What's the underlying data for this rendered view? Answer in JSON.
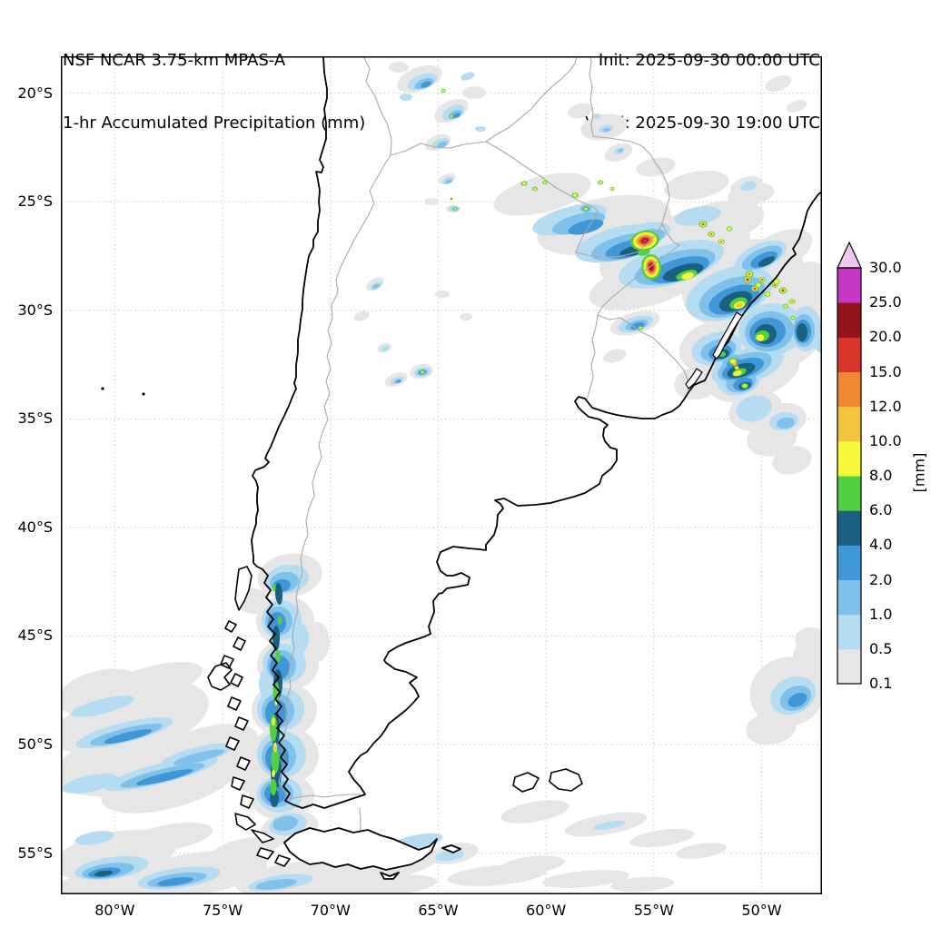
{
  "header": {
    "model_title": "NSF NCAR 3.75-km MPAS-A",
    "product_title": "1-hr Accumulated Precipitation (mm)",
    "init_label": "Init: 2025-09-30 00:00 UTC",
    "valid_label": "Valid: 2025-09-30 19:00 UTC"
  },
  "map": {
    "extent": {
      "west_lon_deg_w": 82.5,
      "east_lon_deg_w": 47.2,
      "north_lat_deg_s": 18.3,
      "south_lat_deg_s": 56.9
    },
    "lon_ticks": [
      {
        "value_deg_w": 80,
        "label": "80°W"
      },
      {
        "value_deg_w": 75,
        "label": "75°W"
      },
      {
        "value_deg_w": 70,
        "label": "70°W"
      },
      {
        "value_deg_w": 65,
        "label": "65°W"
      },
      {
        "value_deg_w": 60,
        "label": "60°W"
      },
      {
        "value_deg_w": 55,
        "label": "55°W"
      },
      {
        "value_deg_w": 50,
        "label": "50°W"
      }
    ],
    "lat_ticks": [
      {
        "value_deg_s": 20,
        "label": "20°S"
      },
      {
        "value_deg_s": 25,
        "label": "25°S"
      },
      {
        "value_deg_s": 30,
        "label": "30°S"
      },
      {
        "value_deg_s": 35,
        "label": "35°S"
      },
      {
        "value_deg_s": 40,
        "label": "40°S"
      },
      {
        "value_deg_s": 45,
        "label": "45°S"
      },
      {
        "value_deg_s": 50,
        "label": "50°S"
      },
      {
        "value_deg_s": 55,
        "label": "55°S"
      }
    ],
    "coastline_color": "#000000",
    "border_color": "#a9a9a9",
    "grid_color": "#cccccc"
  },
  "colorbar": {
    "unit_label": "[mm]",
    "tick_labels": [
      "0.1",
      "0.5",
      "1.0",
      "2.0",
      "4.0",
      "6.0",
      "8.0",
      "10.0",
      "12.0",
      "15.0",
      "20.0",
      "25.0",
      "30.0"
    ],
    "segment_colors": [
      "#e6e6e6",
      "#b5dcf0",
      "#7fc1ea",
      "#3f97d8",
      "#1a6080",
      "#53cf42",
      "#f8f83a",
      "#f2c63b",
      "#ef8733",
      "#d8352b",
      "#921318",
      "#c438c4"
    ],
    "extend_color": "#edcaed",
    "outline_color": "#000000"
  }
}
